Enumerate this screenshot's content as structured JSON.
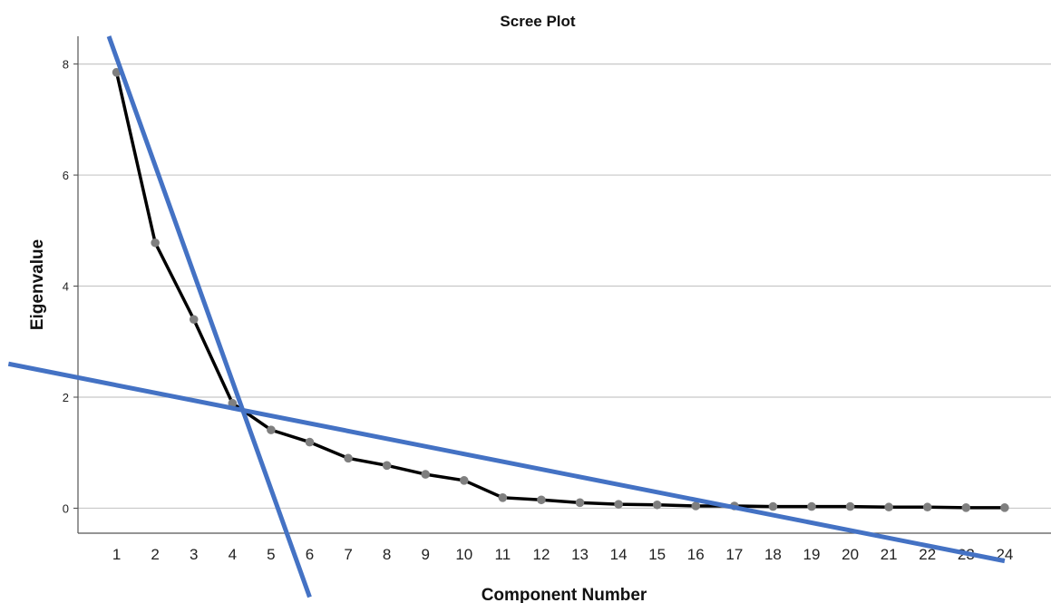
{
  "chart_data": {
    "type": "line",
    "title": "Scree Plot",
    "xlabel": "Component Number",
    "ylabel": "Eigenvalue",
    "categories": [
      "1",
      "2",
      "3",
      "4",
      "5",
      "6",
      "7",
      "8",
      "9",
      "10",
      "11",
      "12",
      "13",
      "14",
      "15",
      "16",
      "17",
      "18",
      "19",
      "20",
      "21",
      "22",
      "23",
      "24"
    ],
    "x": [
      1,
      2,
      3,
      4,
      5,
      6,
      7,
      8,
      9,
      10,
      11,
      12,
      13,
      14,
      15,
      16,
      17,
      18,
      19,
      20,
      21,
      22,
      23,
      24
    ],
    "series": [
      {
        "values": [
          7.85,
          4.78,
          3.4,
          1.89,
          1.41,
          1.19,
          0.9,
          0.77,
          0.61,
          0.5,
          0.19,
          0.15,
          0.1,
          0.07,
          0.06,
          0.04,
          0.04,
          0.03,
          0.03,
          0.03,
          0.02,
          0.02,
          0.01,
          0.01
        ],
        "line_color": "#000000",
        "marker_color": "#7f7f7f"
      }
    ],
    "yticks": [
      "0",
      "2",
      "4",
      "6",
      "8"
    ],
    "ylim": [
      -0.45,
      8.5
    ],
    "xlim": [
      0,
      25.2
    ],
    "grid": "horizontal",
    "annotation_lines": [
      {
        "color": "#4472c4",
        "from": [
          0.8,
          8.5
        ],
        "to": [
          6.0,
          -1.6
        ]
      },
      {
        "color": "#4472c4",
        "from": [
          -1.8,
          2.6
        ],
        "to": [
          24.0,
          -0.95
        ]
      }
    ]
  }
}
